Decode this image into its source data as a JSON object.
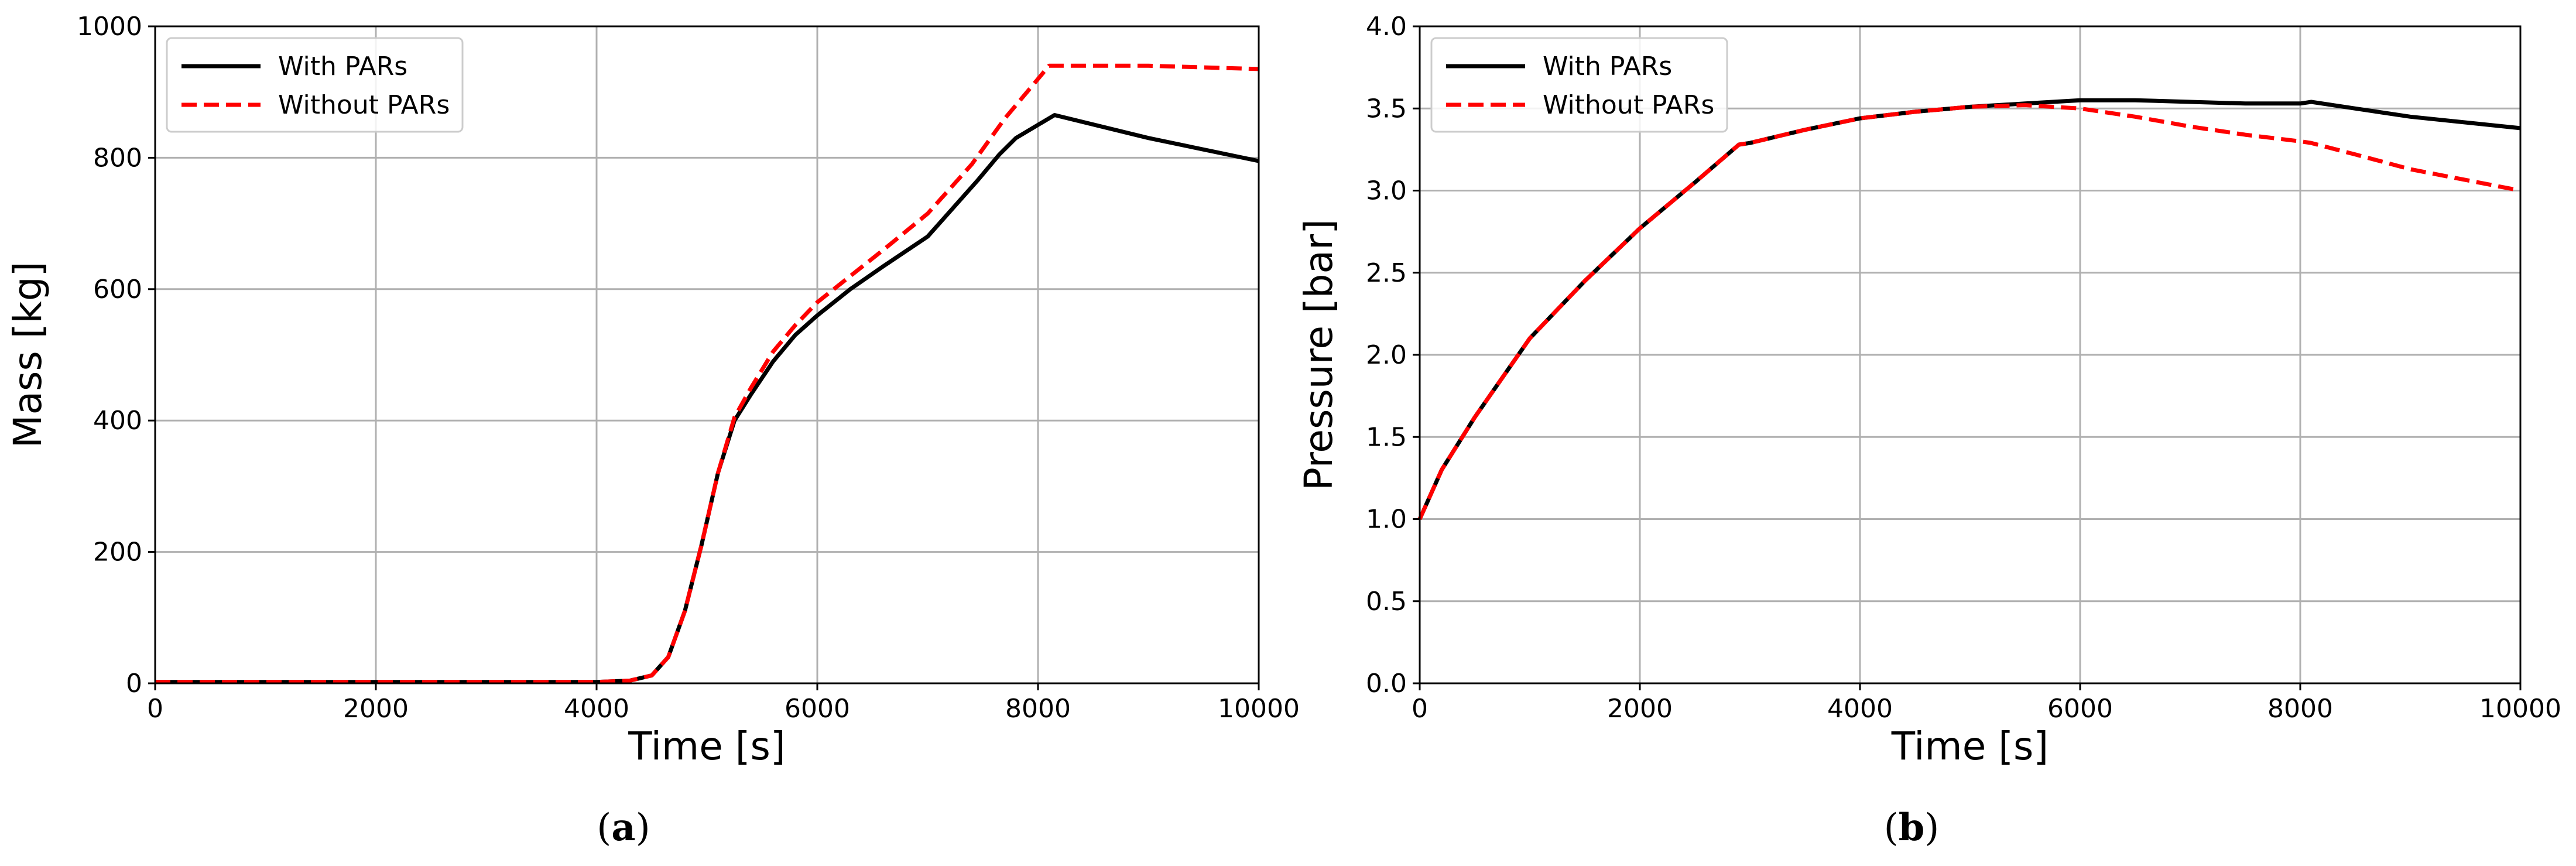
{
  "chart_data": [
    {
      "type": "line",
      "panel_label": "a",
      "xlabel": "Time [s]",
      "ylabel": "Mass [kg]",
      "xlim": [
        0,
        10000
      ],
      "ylim": [
        0,
        1000
      ],
      "xticks": [
        0,
        2000,
        4000,
        6000,
        8000,
        10000
      ],
      "yticks": [
        0,
        200,
        400,
        600,
        800,
        1000
      ],
      "xtick_labels": [
        "0",
        "2000",
        "4000",
        "6000",
        "8000",
        "10000"
      ],
      "ytick_labels": [
        "0",
        "200",
        "400",
        "600",
        "800",
        "1000"
      ],
      "grid": true,
      "legend_position": "top-left",
      "series": [
        {
          "name": "With PARs",
          "color": "#000000",
          "dash": "solid",
          "x": [
            0,
            4000,
            4300,
            4500,
            4650,
            4800,
            4950,
            5100,
            5250,
            5400,
            5600,
            5800,
            6000,
            6300,
            6600,
            7000,
            7450,
            7650,
            7800,
            8000,
            8150,
            9000,
            10000
          ],
          "y": [
            2,
            2,
            4,
            12,
            40,
            110,
            210,
            320,
            400,
            440,
            490,
            530,
            560,
            600,
            635,
            680,
            765,
            805,
            830,
            850,
            865,
            830,
            795
          ]
        },
        {
          "name": "Without PARs",
          "color": "#ff0000",
          "dash": "dashed",
          "x": [
            0,
            4000,
            4300,
            4500,
            4650,
            4800,
            4950,
            5100,
            5250,
            5400,
            5600,
            5800,
            6000,
            6300,
            6600,
            7000,
            7400,
            7700,
            7900,
            8100,
            9000,
            10000
          ],
          "y": [
            2,
            2,
            4,
            12,
            40,
            110,
            210,
            320,
            405,
            450,
            505,
            545,
            580,
            620,
            660,
            715,
            790,
            860,
            900,
            940,
            940,
            935
          ]
        }
      ]
    },
    {
      "type": "line",
      "panel_label": "b",
      "xlabel": "Time [s]",
      "ylabel": "Pressure [bar]",
      "xlim": [
        0,
        10000
      ],
      "ylim": [
        0,
        4
      ],
      "xticks": [
        0,
        2000,
        4000,
        6000,
        8000,
        10000
      ],
      "yticks": [
        0,
        0.5,
        1.0,
        1.5,
        2.0,
        2.5,
        3.0,
        3.5,
        4.0
      ],
      "xtick_labels": [
        "0",
        "2000",
        "4000",
        "6000",
        "8000",
        "10000"
      ],
      "ytick_labels": [
        "0.0",
        "0.5",
        "1.0",
        "1.5",
        "2.0",
        "2.5",
        "3.0",
        "3.5",
        "4.0"
      ],
      "grid": true,
      "legend_position": "top-left",
      "series": [
        {
          "name": "With PARs",
          "color": "#000000",
          "dash": "solid",
          "x": [
            0,
            200,
            500,
            1000,
            1500,
            2000,
            2500,
            2900,
            3000,
            3500,
            4000,
            4500,
            5000,
            5500,
            6000,
            6500,
            7000,
            7500,
            8000,
            8100,
            8500,
            9000,
            10000
          ],
          "y": [
            1.0,
            1.3,
            1.62,
            2.1,
            2.45,
            2.77,
            3.05,
            3.28,
            3.29,
            3.37,
            3.44,
            3.48,
            3.51,
            3.53,
            3.55,
            3.55,
            3.54,
            3.53,
            3.53,
            3.54,
            3.5,
            3.45,
            3.38
          ]
        },
        {
          "name": "Without PARs",
          "color": "#ff0000",
          "dash": "dashed",
          "x": [
            0,
            200,
            500,
            1000,
            1500,
            2000,
            2500,
            2900,
            3000,
            3500,
            4000,
            4500,
            5000,
            5500,
            6000,
            6500,
            7000,
            7500,
            8000,
            8100,
            8500,
            9000,
            10000
          ],
          "y": [
            1.0,
            1.3,
            1.62,
            2.1,
            2.45,
            2.77,
            3.05,
            3.28,
            3.29,
            3.37,
            3.44,
            3.48,
            3.51,
            3.52,
            3.5,
            3.45,
            3.39,
            3.34,
            3.3,
            3.29,
            3.22,
            3.13,
            3.0
          ]
        }
      ]
    }
  ]
}
